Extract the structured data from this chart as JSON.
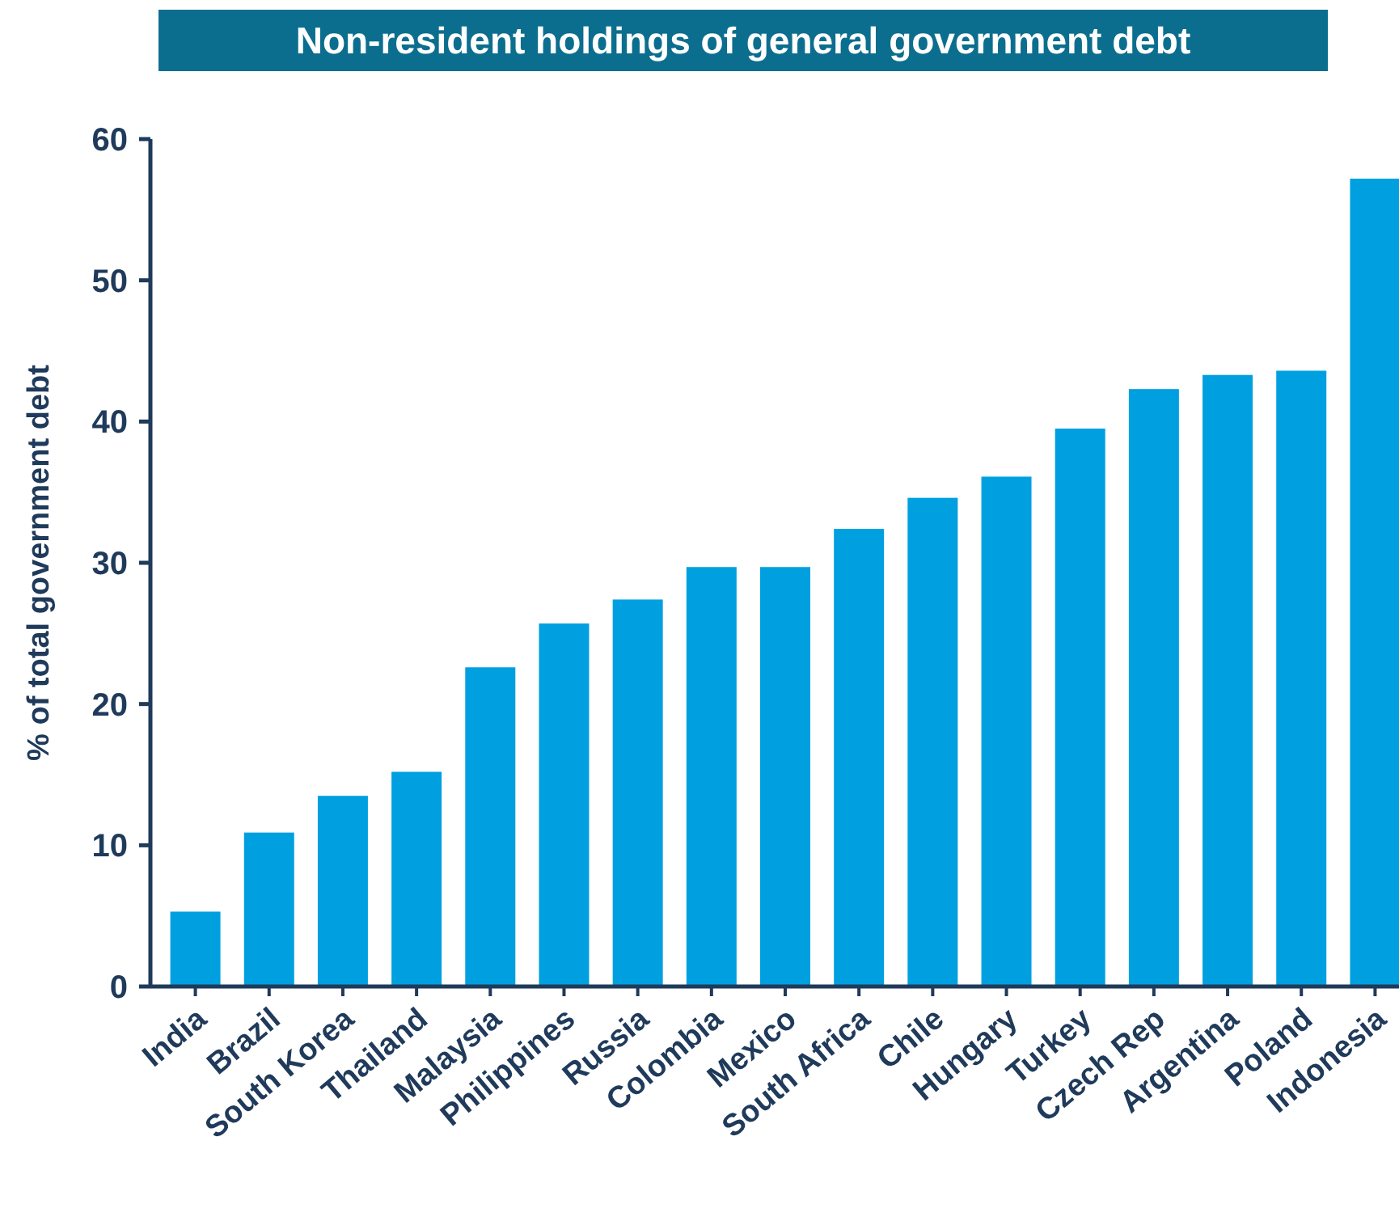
{
  "chart_data": {
    "type": "bar",
    "title": "Non-resident holdings of general government debt",
    "ylabel": "% of total government debt",
    "categories": [
      "India",
      "Brazil",
      "South Korea",
      "Thailand",
      "Malaysia",
      "Philippines",
      "Russia",
      "Colombia",
      "Mexico",
      "South Africa",
      "Chile",
      "Hungary",
      "Turkey",
      "Czech Rep",
      "Argentina",
      "Poland",
      "Indonesia"
    ],
    "values": [
      5.3,
      10.9,
      13.5,
      15.2,
      22.6,
      25.7,
      27.4,
      29.7,
      29.7,
      32.4,
      34.6,
      36.1,
      39.5,
      42.3,
      43.3,
      43.6,
      57.2
    ],
    "color": "#00a0e0",
    "ylim": [
      0,
      60
    ],
    "yticks": [
      0,
      10,
      20,
      30,
      40,
      50,
      60
    ]
  }
}
